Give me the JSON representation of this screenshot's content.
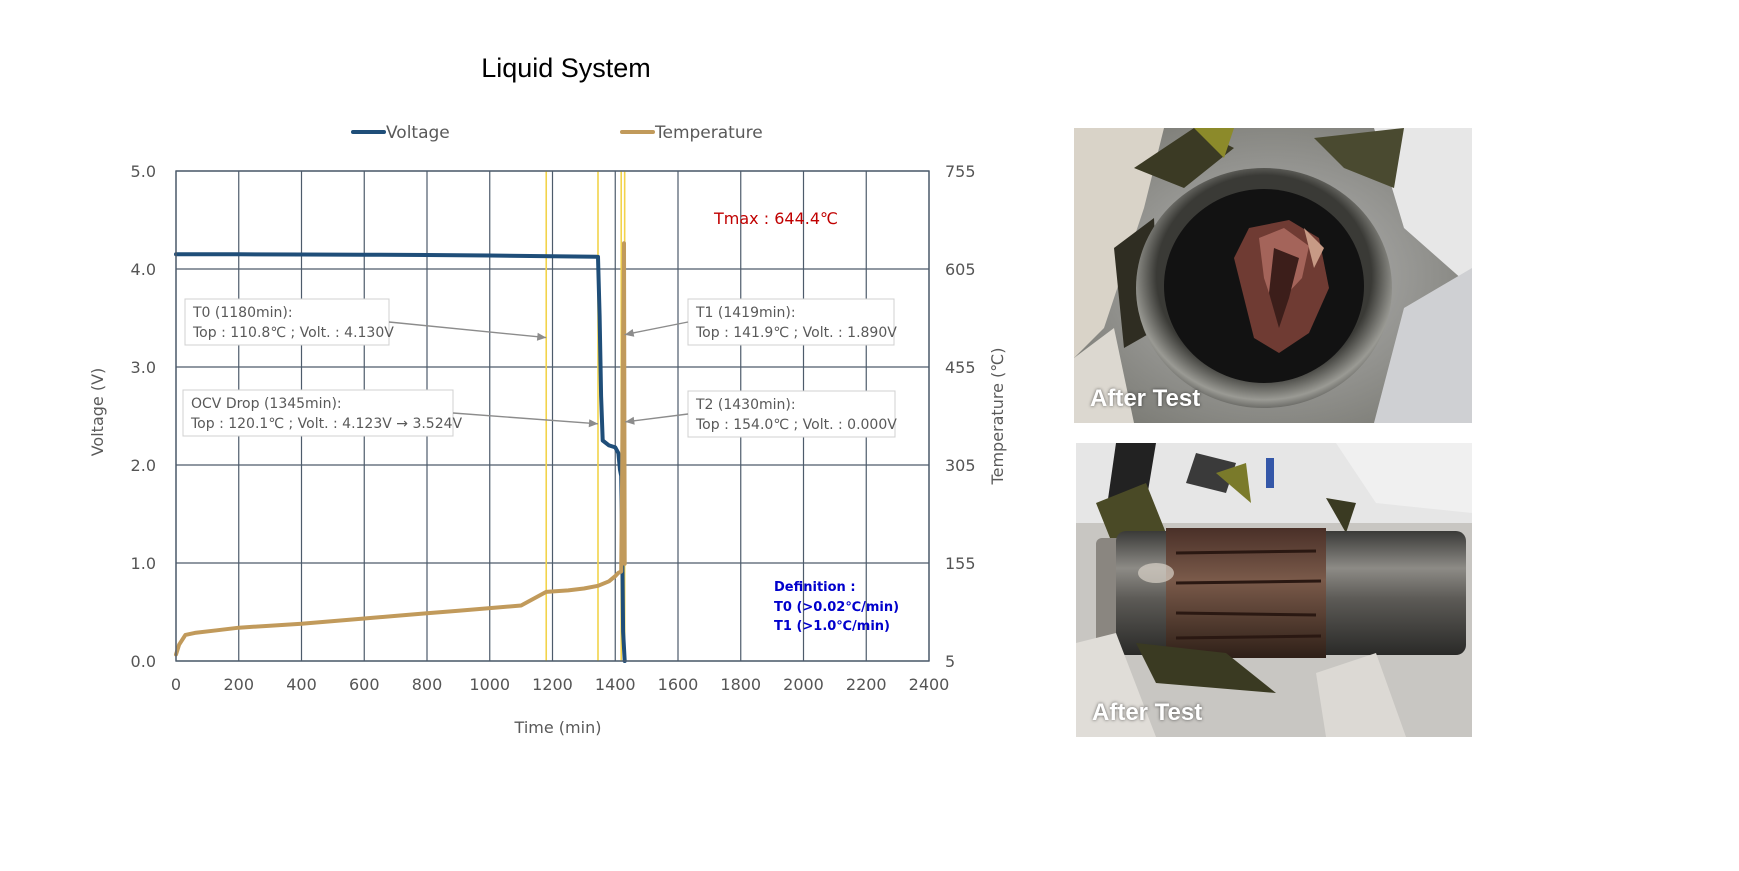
{
  "chart_data": {
    "type": "line",
    "title": "Liquid System",
    "xlabel": "Time (min)",
    "ylabel_left": "Voltage (V)",
    "ylabel_right": "Temperature (℃)",
    "xlim": [
      0,
      2400
    ],
    "ylim_left": [
      0,
      5
    ],
    "ylim_right": [
      5,
      755
    ],
    "x_ticks": [
      0,
      200,
      400,
      600,
      800,
      1000,
      1200,
      1400,
      1600,
      1800,
      2000,
      2200,
      2400
    ],
    "y_left_ticks": [
      "0.0",
      "1.0",
      "2.0",
      "3.0",
      "4.0",
      "5.0"
    ],
    "y_left_tick_values": [
      0,
      1,
      2,
      3,
      4,
      5
    ],
    "y_right_ticks": [
      "5",
      "155",
      "305",
      "455",
      "605",
      "755"
    ],
    "y_right_tick_values": [
      5,
      155,
      305,
      455,
      605,
      755
    ],
    "grid": true,
    "legend_position": "top",
    "series": [
      {
        "name": "Voltage",
        "axis": "left",
        "color": "#1f4e79",
        "x": [
          0,
          200,
          400,
          600,
          800,
          1000,
          1200,
          1340,
          1345,
          1350,
          1355,
          1360,
          1380,
          1400,
          1410,
          1415,
          1419,
          1422,
          1425,
          1430
        ],
        "y": [
          4.15,
          4.15,
          4.148,
          4.146,
          4.143,
          4.138,
          4.13,
          4.125,
          4.123,
          3.524,
          2.7,
          2.25,
          2.2,
          2.18,
          2.12,
          1.95,
          1.89,
          1.2,
          0.3,
          0.0
        ]
      },
      {
        "name": "Temperature",
        "axis": "right",
        "color": "#c19a5b",
        "x": [
          0,
          10,
          30,
          60,
          130,
          200,
          300,
          400,
          500,
          600,
          700,
          800,
          900,
          1000,
          1100,
          1180,
          1250,
          1300,
          1345,
          1380,
          1400,
          1410,
          1415,
          1419,
          1422,
          1425,
          1428,
          1430
        ],
        "y": [
          15,
          30,
          45,
          48,
          52,
          56,
          59,
          62,
          66,
          70,
          74,
          78,
          82,
          86,
          90,
          110.8,
          113,
          116,
          120.1,
          127,
          135,
          140,
          141,
          141.9,
          300,
          500,
          644.4,
          154
        ]
      }
    ],
    "vertical_markers": [
      {
        "x": 1180,
        "color": "#f2d34a"
      },
      {
        "x": 1345,
        "color": "#f2d34a"
      },
      {
        "x": 1419,
        "color": "#f2d34a"
      },
      {
        "x": 1430,
        "color": "#f2d34a"
      }
    ],
    "annotations": [
      {
        "id": "t0",
        "lines": [
          "T0 (1180min):",
          "Top : 110.8℃ ; Volt. : 4.130V"
        ],
        "target_x": 1180,
        "target_v": 3.3
      },
      {
        "id": "ocv",
        "lines": [
          "OCV Drop (1345min):",
          "Top : 120.1℃ ; Volt. : 4.123V → 3.524V"
        ],
        "target_x": 1345,
        "target_v": 2.42
      },
      {
        "id": "t1",
        "lines": [
          "T1 (1419min):",
          "Top : 141.9℃ ; Volt. : 1.890V"
        ],
        "target_x": 1430,
        "target_v": 3.33
      },
      {
        "id": "t2",
        "lines": [
          "T2 (1430min):",
          "Top : 154.0℃ ; Volt. : 0.000V"
        ],
        "target_x": 1432,
        "target_v": 2.44
      }
    ],
    "tmax_label": "Tmax : 644.4℃",
    "definition": {
      "title": "Definition :",
      "lines": [
        "T0 (>0.02℃/min)",
        "T1 (>1.0℃/min)"
      ]
    }
  },
  "photos": [
    {
      "label": "After Test",
      "subject": "cell-top-view"
    },
    {
      "label": "After Test",
      "subject": "cell-side-view"
    }
  ]
}
